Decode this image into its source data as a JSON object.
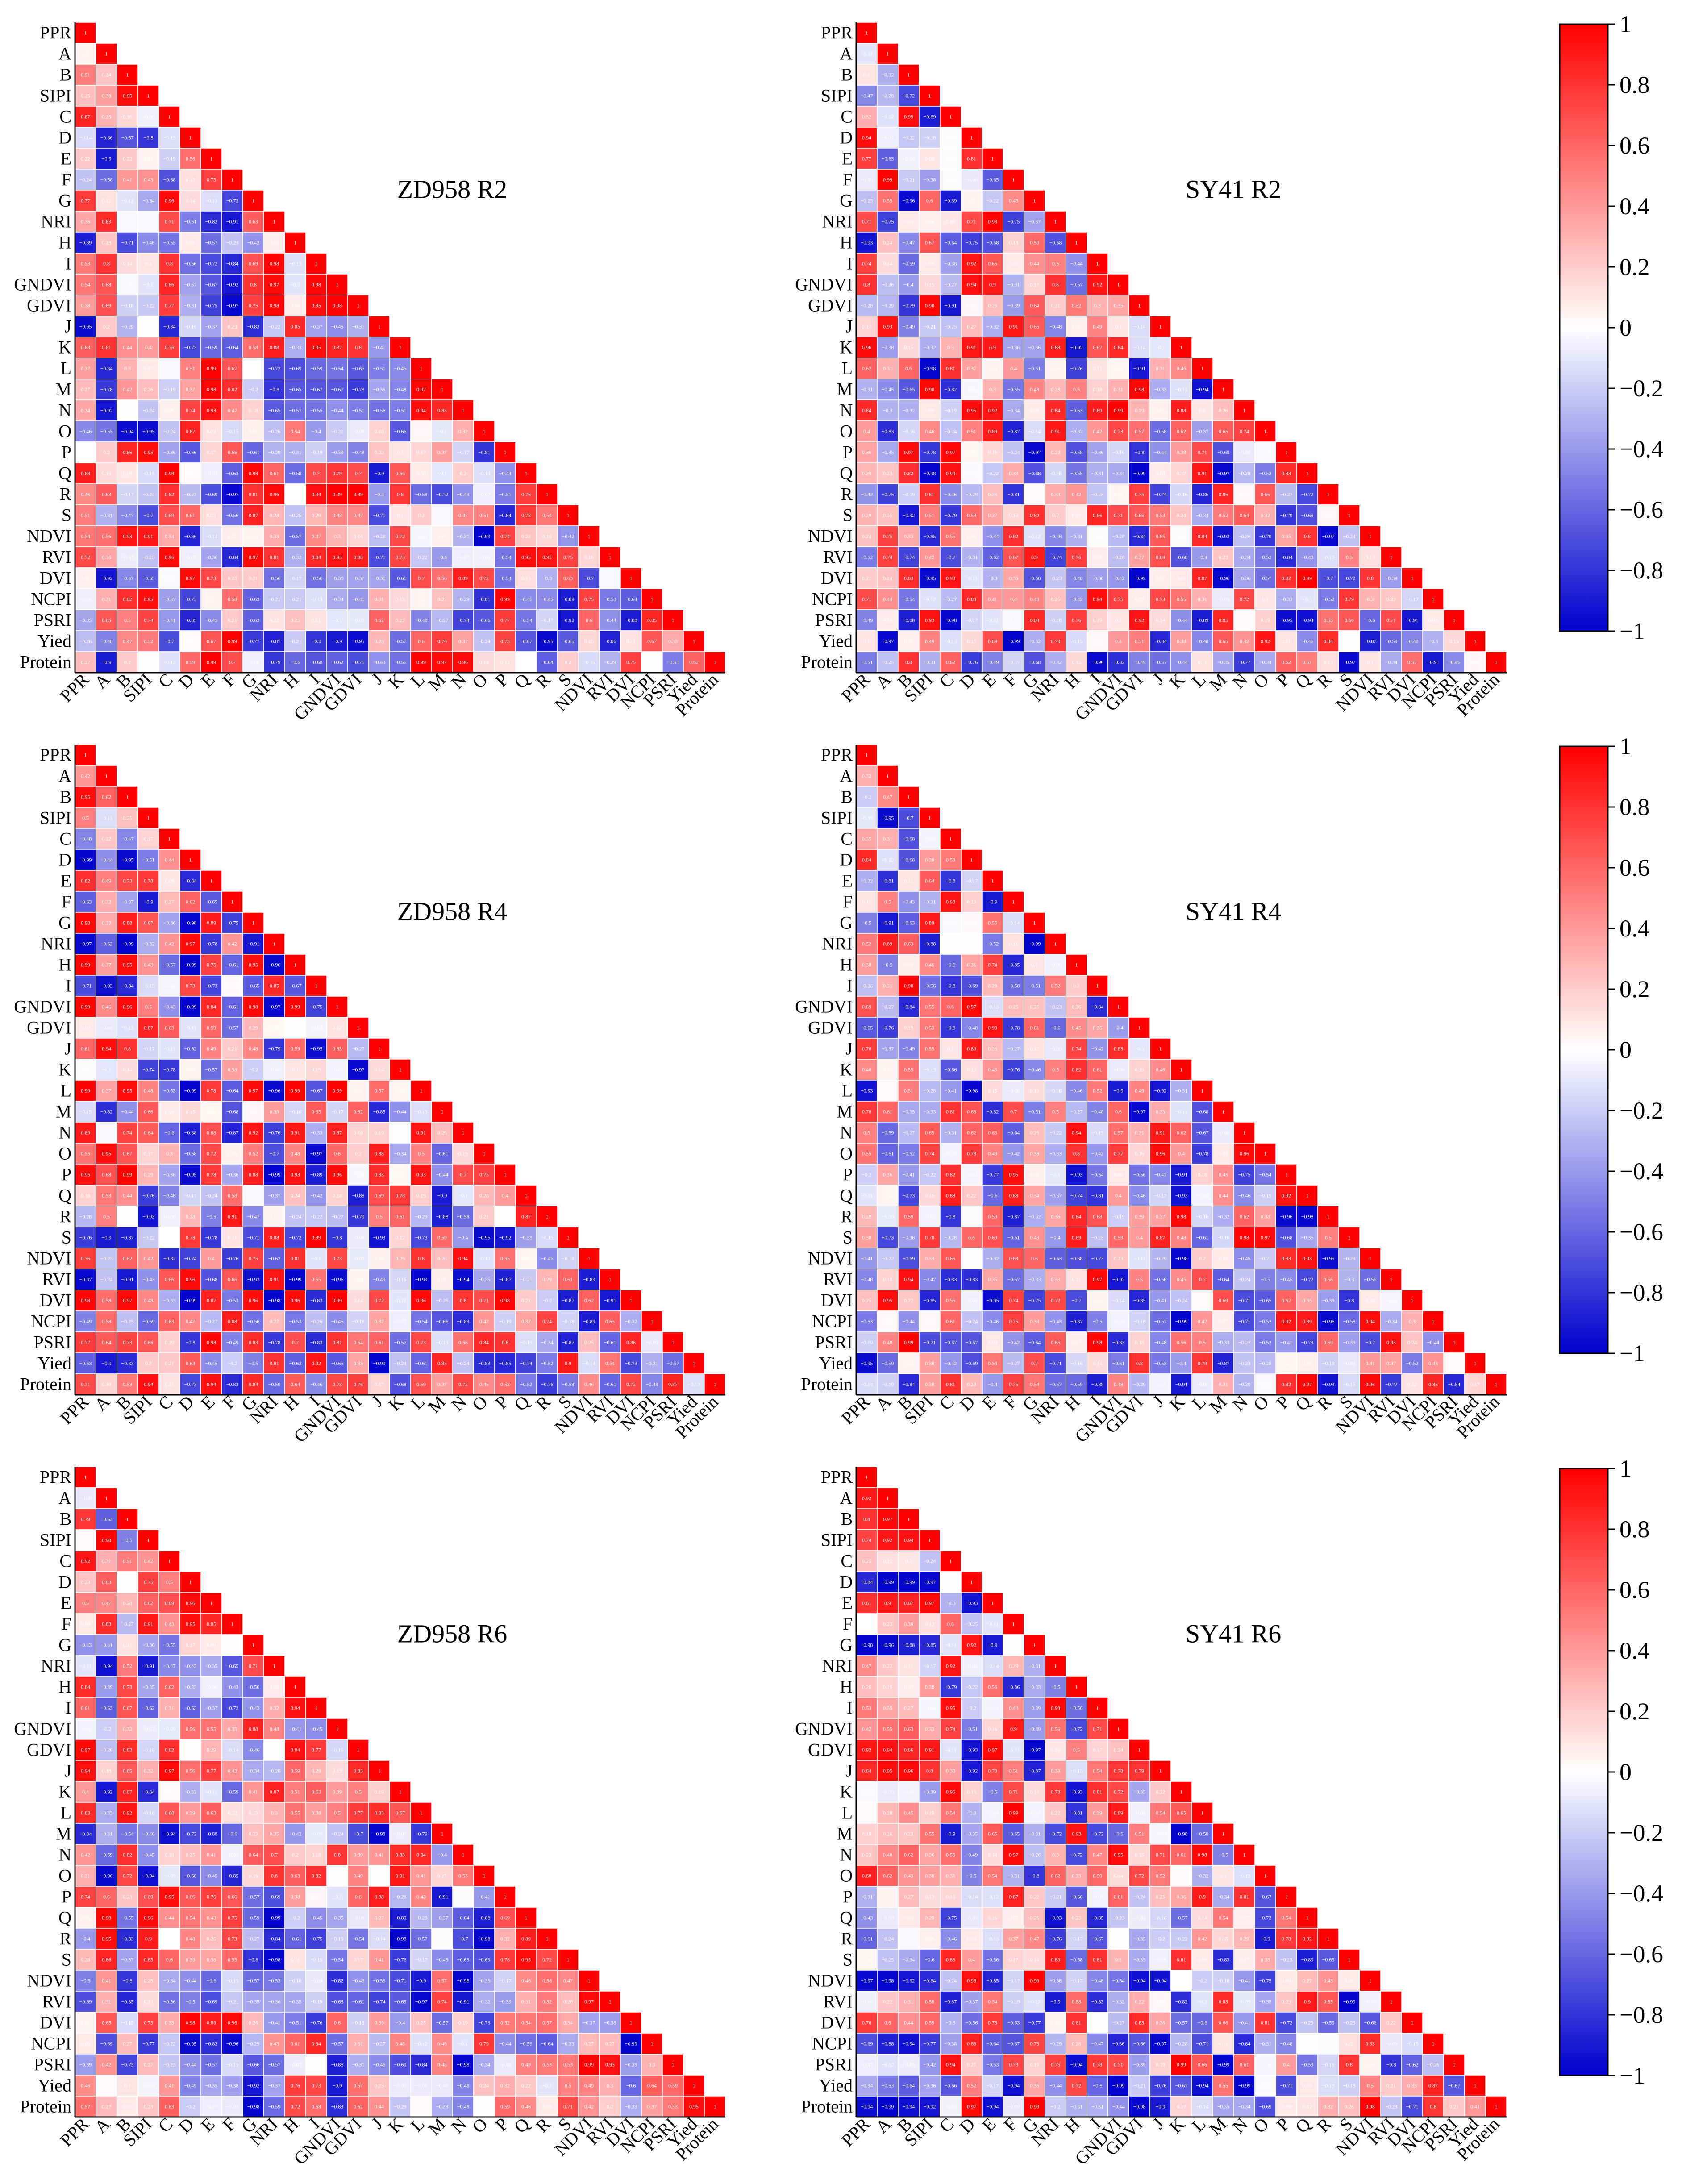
{
  "chart_data": [
    {
      "type": "heatmap",
      "title": "ZD958  R2",
      "variety": "ZD958",
      "stage": "R2",
      "seed": 11,
      "diag_value": "1"
    },
    {
      "type": "heatmap",
      "title": "SY41  R2",
      "variety": "SY41",
      "stage": "R2",
      "seed": 23,
      "diag_value": "1"
    },
    {
      "type": "heatmap",
      "title": "ZD958  R4",
      "variety": "ZD958",
      "stage": "R4",
      "seed": 37,
      "diag_value": "1"
    },
    {
      "type": "heatmap",
      "title": "SY41  R4",
      "variety": "SY41",
      "stage": "R4",
      "seed": 41,
      "diag_value": "1"
    },
    {
      "type": "heatmap",
      "title": "ZD958  R6",
      "variety": "ZD958",
      "stage": "R6",
      "seed": 53,
      "diag_value": "1"
    },
    {
      "type": "heatmap",
      "title": "SY41  R6",
      "variety": "SY41",
      "stage": "R6",
      "seed": 67,
      "diag_value": "1"
    }
  ],
  "variables": [
    "PPR",
    "A",
    "B",
    "SIPI",
    "C",
    "D",
    "E",
    "F",
    "G",
    "NRI",
    "H",
    "I",
    "GNDVI",
    "GDVI",
    "J",
    "K",
    "L",
    "M",
    "N",
    "O",
    "P",
    "Q",
    "R",
    "S",
    "NDVI",
    "RVI",
    "DVI",
    "NCPI",
    "PSRI",
    "Yied",
    "Protein"
  ],
  "colorbar": {
    "range": [
      -1,
      1
    ],
    "ticks": [
      "1",
      "0.8",
      "0.6",
      "0.4",
      "0.2",
      "0",
      "−0.2",
      "−0.4",
      "−0.6",
      "−0.8",
      "−1"
    ],
    "colors": {
      "high": "#ff0000",
      "mid": "#ffffff",
      "low": "#0000cd"
    }
  },
  "colors": {
    "background": "#ffffff",
    "grid": "#ffffff",
    "axis": "#000000"
  }
}
